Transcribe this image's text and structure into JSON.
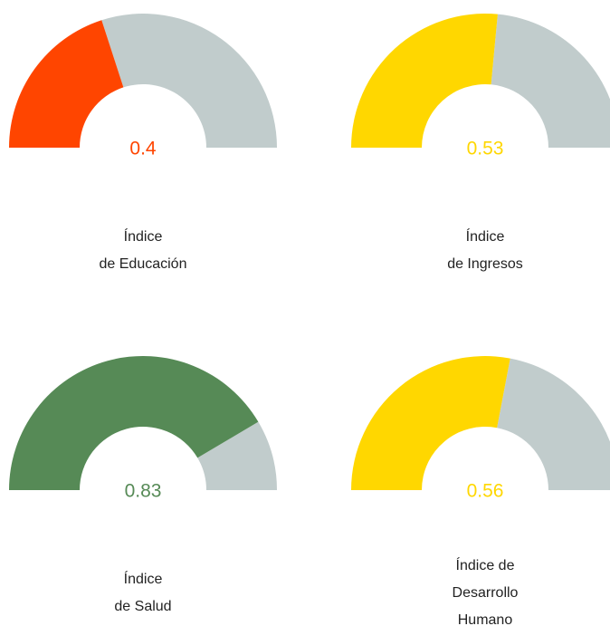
{
  "chart_data": [
    {
      "type": "gauge",
      "value": 0.4,
      "ylim": [
        0,
        1
      ],
      "color": "#ff4500",
      "track_color": "#c1cccc",
      "label": [
        "Índice",
        "de Educación"
      ]
    },
    {
      "type": "gauge",
      "value": 0.53,
      "ylim": [
        0,
        1
      ],
      "color": "#ffd700",
      "track_color": "#c1cccc",
      "label": [
        "Índice",
        "de Ingresos"
      ]
    },
    {
      "type": "gauge",
      "value": 0.83,
      "ylim": [
        0,
        1
      ],
      "color": "#568a56",
      "track_color": "#c1cccc",
      "label": [
        "Índice",
        "de Salud"
      ]
    },
    {
      "type": "gauge",
      "value": 0.56,
      "ylim": [
        0,
        1
      ],
      "color": "#ffd700",
      "track_color": "#c1cccc",
      "label": [
        "Índice de",
        "Desarrollo",
        "Humano"
      ]
    }
  ]
}
